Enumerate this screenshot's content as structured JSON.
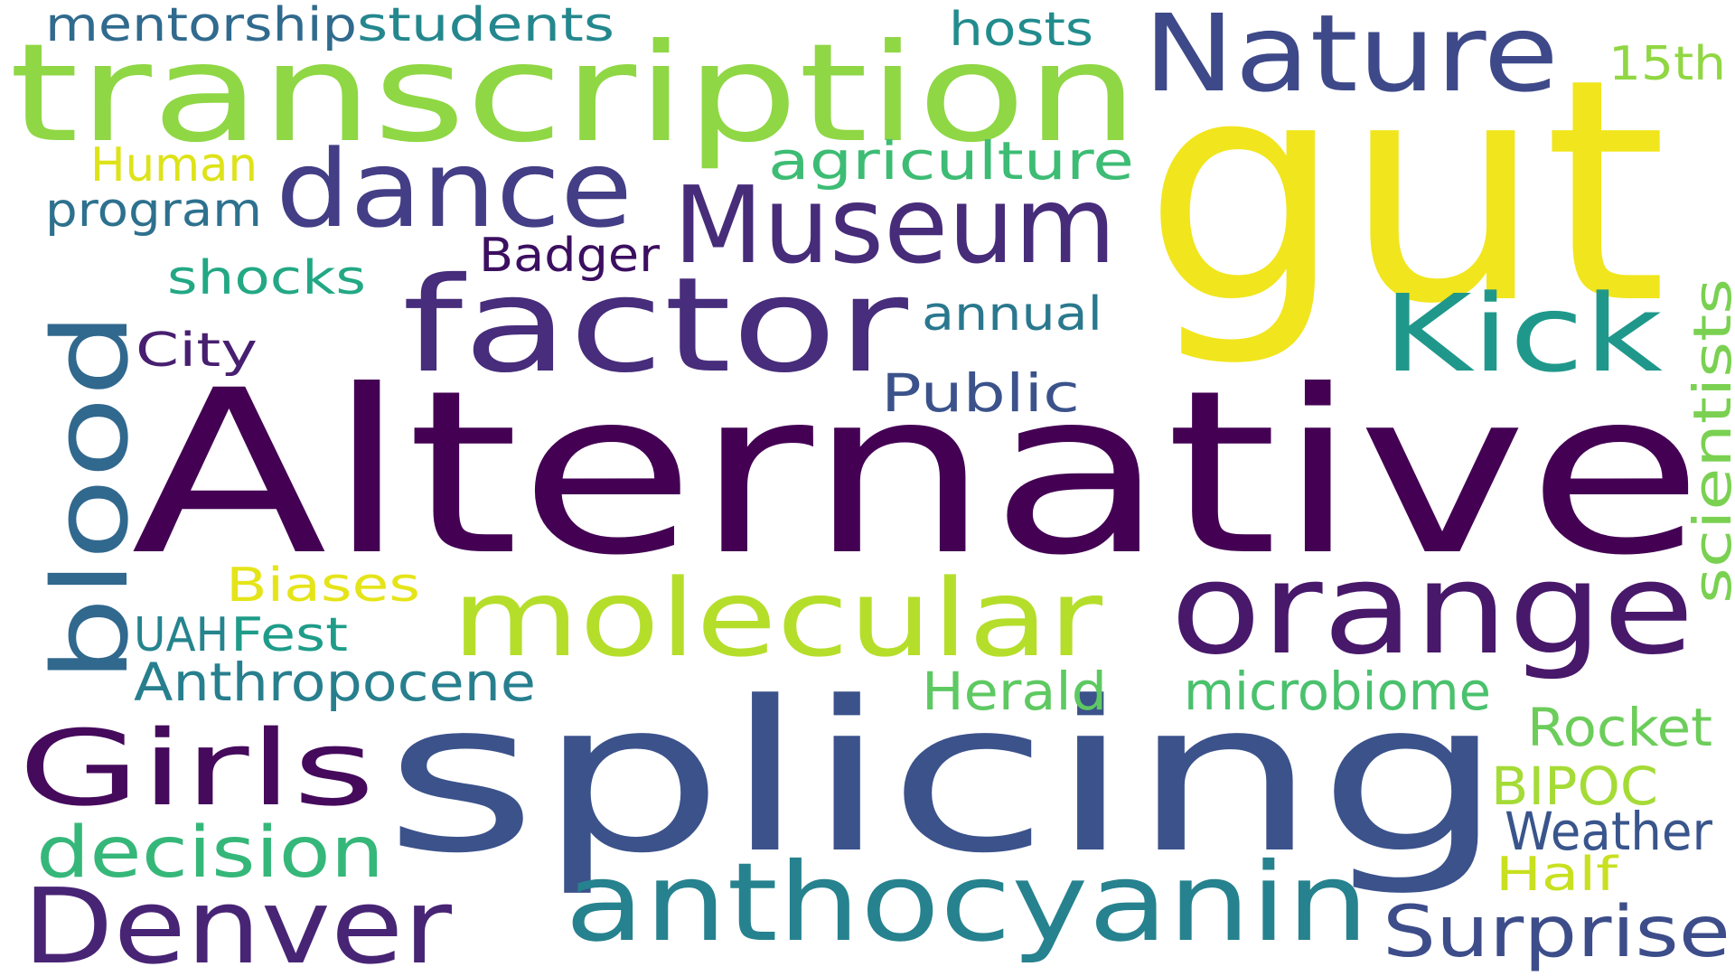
{
  "words": [
    {
      "text": "gut",
      "color": "#f1e51d"
    },
    {
      "text": "Alternative",
      "color": "#440154"
    },
    {
      "text": "splicing",
      "color": "#3b528b"
    },
    {
      "text": "transcription",
      "color": "#8fd744"
    },
    {
      "text": "factor",
      "color": "#472d7b"
    },
    {
      "text": "orange",
      "color": "#48186a"
    },
    {
      "text": "anthocyanin",
      "color": "#26828e"
    },
    {
      "text": "molecular",
      "color": "#b5de2b"
    },
    {
      "text": "Museum",
      "color": "#472c7a"
    },
    {
      "text": "dance",
      "color": "#433e85"
    },
    {
      "text": "Nature",
      "color": "#3e4989"
    },
    {
      "text": "Kick",
      "color": "#1f988b"
    },
    {
      "text": "blood",
      "color": "#31688e"
    },
    {
      "text": "Denver",
      "color": "#482475"
    },
    {
      "text": "Girls",
      "color": "#450a5c"
    },
    {
      "text": "decision",
      "color": "#35b779"
    },
    {
      "text": "Surprise",
      "color": "#3d4d8a"
    },
    {
      "text": "scientists",
      "color": "#7ad151"
    },
    {
      "text": "Anthropocene",
      "color": "#277f8e"
    },
    {
      "text": "microbiome",
      "color": "#4ac16d"
    },
    {
      "text": "agriculture",
      "color": "#3dbc74"
    },
    {
      "text": "Public",
      "color": "#3b528b"
    },
    {
      "text": "Rocket",
      "color": "#6ccd5a"
    },
    {
      "text": "Weather",
      "color": "#39558c"
    },
    {
      "text": "BIPOC",
      "color": "#a5db36"
    },
    {
      "text": "Herald",
      "color": "#5ec962"
    },
    {
      "text": "students",
      "color": "#24878e"
    },
    {
      "text": "mentorship",
      "color": "#306a8e"
    },
    {
      "text": "Biases",
      "color": "#e5e419"
    },
    {
      "text": "Badger",
      "color": "#3c0f60"
    },
    {
      "text": "annual",
      "color": "#2a788e"
    },
    {
      "text": "shocks",
      "color": "#22a884"
    },
    {
      "text": "program",
      "color": "#2d718e"
    },
    {
      "text": "Human",
      "color": "#dde318"
    },
    {
      "text": "hosts",
      "color": "#228c8d"
    },
    {
      "text": "City",
      "color": "#481f70"
    },
    {
      "text": "Fest",
      "color": "#1e9c89"
    },
    {
      "text": "UAH",
      "color": "#25848e"
    },
    {
      "text": "Half",
      "color": "#c8e020"
    },
    {
      "text": "15th",
      "color": "#90d743"
    }
  ]
}
